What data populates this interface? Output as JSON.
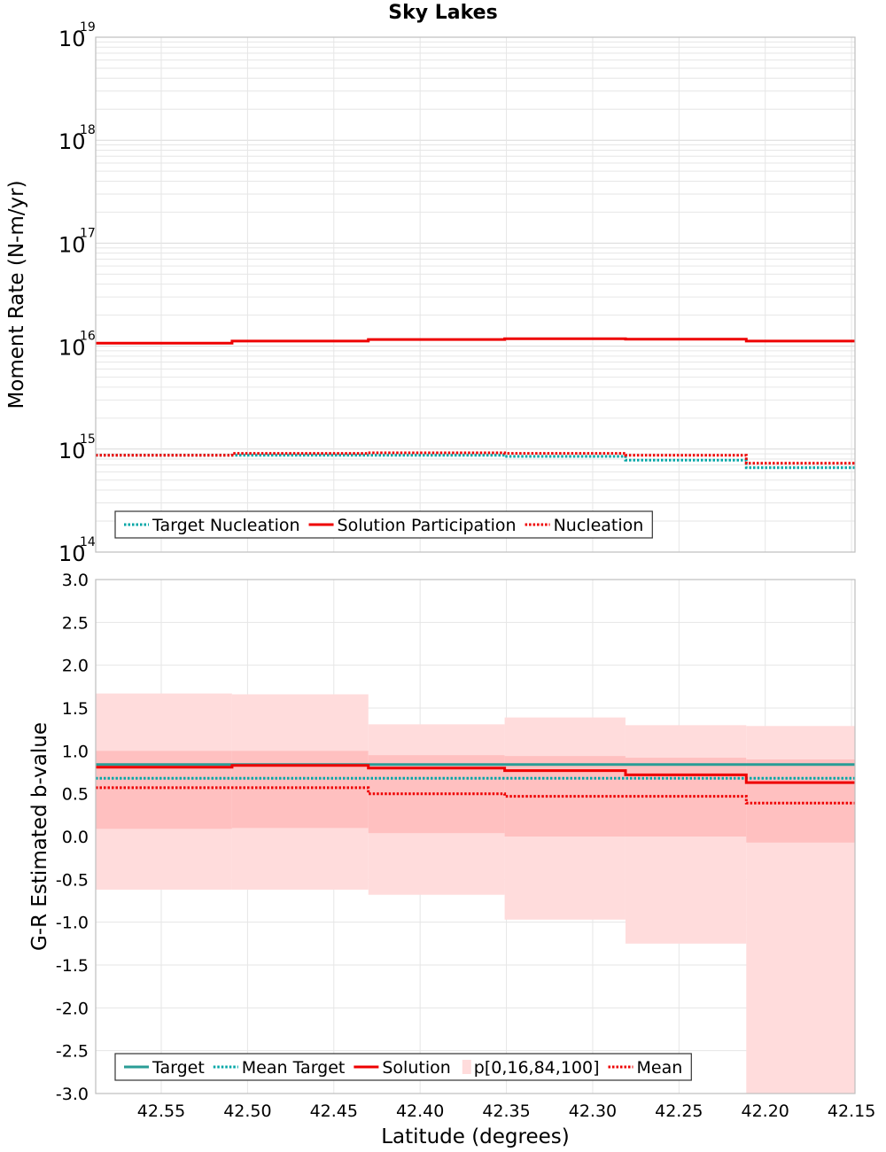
{
  "title": "Sky Lakes",
  "colors": {
    "target": "#00a6a6",
    "target_line": "#2a9d96",
    "solution": "#ee0000",
    "band_outer": "#ffdcdc",
    "band_inner": "#ffc0c0",
    "grid": "#e6e6e6",
    "frame": "#bfbfbf"
  },
  "chart_data": [
    {
      "type": "line",
      "title": "Sky Lakes",
      "ylabel": "Moment Rate (N-m/yr)",
      "yscale": "log",
      "ylim": [
        100000000000000.0,
        1e+19
      ],
      "xlim": [
        42.588,
        42.148
      ],
      "x_reversed": true,
      "grid": true,
      "y_tick_labels": [
        {
          "base": "10",
          "exp": "14",
          "value": 100000000000000.0
        },
        {
          "base": "10",
          "exp": "15",
          "value": 1000000000000000.0
        },
        {
          "base": "10",
          "exp": "16",
          "value": 1e+16
        },
        {
          "base": "10",
          "exp": "17",
          "value": 1e+17
        },
        {
          "base": "10",
          "exp": "18",
          "value": 1e+18
        },
        {
          "base": "10",
          "exp": "19",
          "value": 1e+19
        }
      ],
      "x_bin_edges": [
        42.588,
        42.509,
        42.43,
        42.351,
        42.281,
        42.211,
        42.148
      ],
      "legend_position": "bottom-left",
      "series": [
        {
          "name": "Target Nucleation",
          "style": "dotted",
          "color": "#00a6a6",
          "values": [
            870000000000000.0,
            870000000000000.0,
            870000000000000.0,
            850000000000000.0,
            780000000000000.0,
            660000000000000.0
          ]
        },
        {
          "name": "Solution Participation",
          "style": "solid",
          "color": "#ee0000",
          "values": [
            1.07e+16,
            1.12e+16,
            1.16e+16,
            1.18e+16,
            1.17e+16,
            1.12e+16
          ]
        },
        {
          "name": "Nucleation",
          "style": "dotted",
          "color": "#ee0000",
          "values": [
            870000000000000.0,
            910000000000000.0,
            920000000000000.0,
            910000000000000.0,
            870000000000000.0,
            730000000000000.0
          ]
        }
      ]
    },
    {
      "type": "line",
      "ylabel": "G-R Estimated b-value",
      "xlabel": "Latitude (degrees)",
      "ylim": [
        -3.0,
        3.0
      ],
      "xlim": [
        42.588,
        42.148
      ],
      "x_reversed": true,
      "grid": true,
      "y_ticks": [
        "-3.0",
        "-2.5",
        "-2.0",
        "-1.5",
        "-1.0",
        "-0.5",
        "0.0",
        "0.5",
        "1.0",
        "1.5",
        "2.0",
        "2.5",
        "3.0"
      ],
      "x_ticks": [
        "42.55",
        "42.50",
        "42.45",
        "42.40",
        "42.35",
        "42.30",
        "42.25",
        "42.20",
        "42.15"
      ],
      "x_bin_edges": [
        42.588,
        42.509,
        42.43,
        42.351,
        42.281,
        42.211,
        42.148
      ],
      "legend_position": "bottom-left",
      "series": [
        {
          "name": "Target",
          "style": "solid",
          "color": "#2a9d96",
          "values": [
            0.84,
            0.84,
            0.84,
            0.84,
            0.84,
            0.84
          ]
        },
        {
          "name": "Mean Target",
          "style": "dotted",
          "color": "#00a6a6",
          "values": [
            0.68,
            0.68,
            0.68,
            0.68,
            0.68,
            0.68
          ]
        },
        {
          "name": "Solution",
          "style": "solid",
          "color": "#ee0000",
          "values": [
            0.81,
            0.83,
            0.8,
            0.77,
            0.72,
            0.63
          ]
        },
        {
          "name": "p[0,16,84,100]",
          "style": "band",
          "p0": [
            -0.62,
            -0.62,
            -0.68,
            -0.97,
            -1.25,
            -3.0
          ],
          "p16": [
            0.09,
            0.1,
            0.04,
            0.0,
            0.0,
            -0.07
          ],
          "p84": [
            1.0,
            1.0,
            0.95,
            0.94,
            0.92,
            0.9
          ],
          "p100": [
            1.67,
            1.66,
            1.31,
            1.39,
            1.3,
            1.29
          ]
        },
        {
          "name": "Mean",
          "style": "dotted",
          "color": "#ee0000",
          "values": [
            0.57,
            0.57,
            0.5,
            0.47,
            0.47,
            0.39
          ]
        }
      ]
    }
  ]
}
